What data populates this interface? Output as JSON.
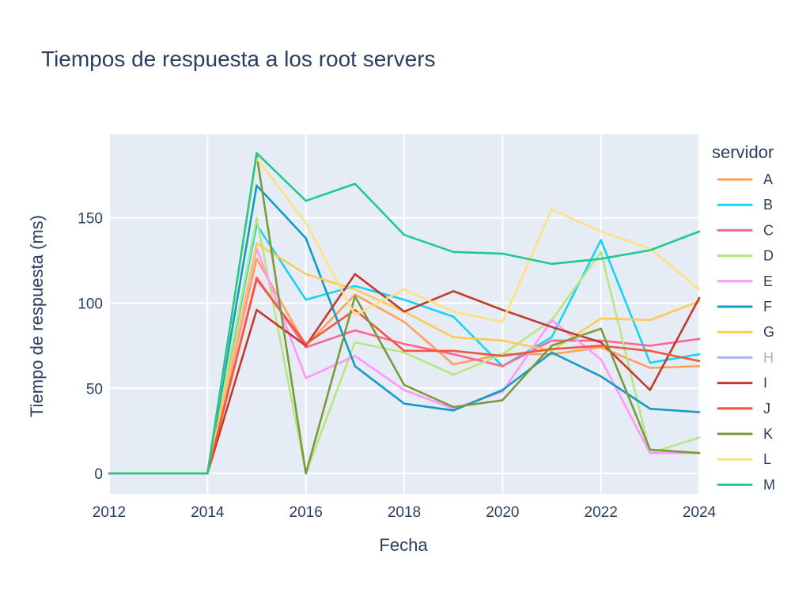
{
  "chart_data": {
    "type": "line",
    "title": "Tiempos de respuesta a los root servers",
    "xlabel": "Fecha",
    "ylabel": "Tiempo de respuesta (ms)",
    "xlim": [
      2012,
      2024
    ],
    "ylim": [
      -12,
      199
    ],
    "x_ticks": [
      2012,
      2014,
      2016,
      2018,
      2020,
      2022,
      2024
    ],
    "y_ticks": [
      0,
      50,
      100,
      150
    ],
    "legend_title": "servidor",
    "legend_position": "right",
    "x": [
      2012,
      2013,
      2014,
      2015,
      2016,
      2017,
      2018,
      2019,
      2020,
      2021,
      2022,
      2023,
      2024
    ],
    "series": [
      {
        "name": "A",
        "color": "#ffa15a",
        "values": [
          0,
          0,
          0,
          126,
          75,
          105,
          89,
          64,
          70,
          70,
          74,
          62,
          63
        ]
      },
      {
        "name": "B",
        "color": "#19d3f3",
        "values": [
          0,
          0,
          0,
          146,
          102,
          110,
          102,
          92,
          63,
          80,
          137,
          65,
          70
        ]
      },
      {
        "name": "C",
        "color": "#ff6692",
        "values": [
          0,
          0,
          0,
          115,
          74,
          84,
          76,
          70,
          63,
          78,
          78,
          75,
          79
        ]
      },
      {
        "name": "D",
        "color": "#b6e880",
        "values": [
          0,
          0,
          0,
          150,
          0,
          77,
          71,
          58,
          70,
          90,
          130,
          12,
          21
        ]
      },
      {
        "name": "E",
        "color": "#ff97ff",
        "values": [
          0,
          0,
          0,
          132,
          56,
          69,
          49,
          38,
          48,
          90,
          67,
          12,
          12
        ]
      },
      {
        "name": "F",
        "color": "#109cc4",
        "values": [
          0,
          0,
          0,
          169,
          138,
          63,
          41,
          37,
          49,
          71,
          57,
          38,
          36
        ]
      },
      {
        "name": "G",
        "color": "#fecb52",
        "values": [
          0,
          0,
          0,
          135,
          117,
          108,
          95,
          80,
          78,
          72,
          91,
          90,
          101
        ]
      },
      {
        "name": "H",
        "color": "#a9b8f5",
        "values": [
          null,
          null,
          null,
          null,
          null,
          null,
          null,
          null,
          null,
          null,
          null,
          null,
          null
        ]
      },
      {
        "name": "I",
        "color": "#c13a2a",
        "values": [
          0,
          0,
          0,
          96,
          75,
          117,
          95,
          107,
          96,
          86,
          77,
          49,
          103
        ]
      },
      {
        "name": "J",
        "color": "#f0583e",
        "values": [
          0,
          0,
          0,
          114,
          76,
          96,
          72,
          72,
          69,
          73,
          75,
          72,
          66
        ]
      },
      {
        "name": "K",
        "color": "#7a9a3a",
        "values": [
          0,
          0,
          0,
          187,
          0,
          104,
          52,
          39,
          43,
          75,
          85,
          14,
          12
        ]
      },
      {
        "name": "L",
        "color": "#ffe082",
        "values": [
          0,
          0,
          0,
          185,
          147,
          93,
          108,
          95,
          89,
          155,
          142,
          132,
          108
        ]
      },
      {
        "name": "M",
        "color": "#20c98e",
        "values": [
          0,
          0,
          0,
          188,
          160,
          170,
          140,
          130,
          129,
          123,
          126,
          131,
          142
        ]
      }
    ]
  }
}
